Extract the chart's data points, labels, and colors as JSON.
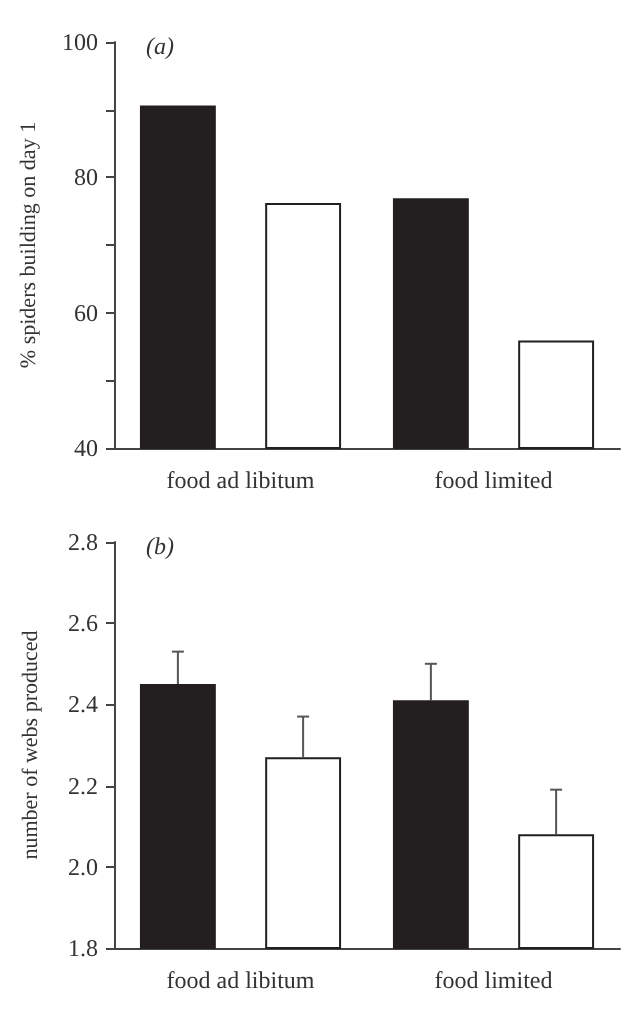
{
  "chart_data": [
    {
      "type": "bar",
      "title": "(a)",
      "ylabel": "% spiders building on day 1",
      "categories": [
        "food ad libitum",
        "food limited"
      ],
      "series": [
        {
          "color": "#231f20",
          "values": [
            90.6,
            76.9
          ]
        },
        {
          "color": "#ffffff",
          "values": [
            76.2,
            55.9
          ]
        }
      ],
      "ylim": [
        40,
        100
      ],
      "yticks": [
        40,
        {
          "value": 50,
          "label": null
        },
        60,
        {
          "value": 70,
          "label": null
        },
        80,
        {
          "value": 90,
          "label": null
        },
        100
      ],
      "grid": false
    },
    {
      "type": "bar",
      "title": "(b)",
      "ylabel": "number of webs produced",
      "categories": [
        "food ad libitum",
        "food limited"
      ],
      "series": [
        {
          "color": "#231f20",
          "values": [
            2.45,
            2.41
          ],
          "errors": [
            [
              2.45,
              2.53
            ],
            [
              2.41,
              2.5
            ]
          ]
        },
        {
          "color": "#ffffff",
          "values": [
            2.27,
            2.08
          ],
          "errors": [
            [
              2.27,
              2.37
            ],
            [
              2.08,
              2.19
            ]
          ]
        }
      ],
      "ylim": [
        1.8,
        2.8
      ],
      "yticks": [
        1.8,
        {
          "value": 2,
          "label": "2.0"
        },
        2.2,
        2.4,
        2.6,
        2.8
      ],
      "grid": false
    }
  ]
}
